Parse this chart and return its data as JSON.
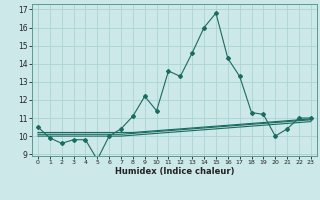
{
  "xlabel": "Humidex (Indice chaleur)",
  "bg_color": "#cce8e8",
  "grid_color": "#aad4d4",
  "line_color": "#1a6b60",
  "x_main": [
    0,
    1,
    2,
    3,
    4,
    5,
    6,
    7,
    8,
    9,
    10,
    11,
    12,
    13,
    14,
    15,
    16,
    17,
    18,
    19,
    20,
    21,
    22,
    23
  ],
  "y_main": [
    10.5,
    9.9,
    9.6,
    9.8,
    9.8,
    8.7,
    10.0,
    10.4,
    11.1,
    12.2,
    11.4,
    13.6,
    13.3,
    14.6,
    16.0,
    16.8,
    14.3,
    13.3,
    11.3,
    11.2,
    10.0,
    10.4,
    11.0,
    11.0
  ],
  "y_trend1": [
    10.2,
    10.2,
    10.2,
    10.2,
    10.2,
    10.2,
    10.2,
    10.2,
    10.2,
    10.25,
    10.3,
    10.35,
    10.4,
    10.45,
    10.5,
    10.55,
    10.6,
    10.65,
    10.7,
    10.75,
    10.8,
    10.85,
    10.9,
    10.95
  ],
  "y_trend2": [
    10.1,
    10.1,
    10.1,
    10.1,
    10.1,
    10.1,
    10.1,
    10.1,
    10.15,
    10.2,
    10.25,
    10.3,
    10.35,
    10.4,
    10.45,
    10.5,
    10.55,
    10.6,
    10.65,
    10.7,
    10.75,
    10.8,
    10.85,
    10.9
  ],
  "y_trend3": [
    10.0,
    10.0,
    10.0,
    10.0,
    10.0,
    10.0,
    10.0,
    10.0,
    10.05,
    10.1,
    10.15,
    10.2,
    10.25,
    10.3,
    10.35,
    10.4,
    10.45,
    10.5,
    10.55,
    10.6,
    10.65,
    10.7,
    10.75,
    10.8
  ],
  "ylim": [
    8.9,
    17.3
  ],
  "xlim": [
    -0.5,
    23.5
  ],
  "yticks": [
    9,
    10,
    11,
    12,
    13,
    14,
    15,
    16,
    17
  ],
  "xticks": [
    0,
    1,
    2,
    3,
    4,
    5,
    6,
    7,
    8,
    9,
    10,
    11,
    12,
    13,
    14,
    15,
    16,
    17,
    18,
    19,
    20,
    21,
    22,
    23
  ]
}
